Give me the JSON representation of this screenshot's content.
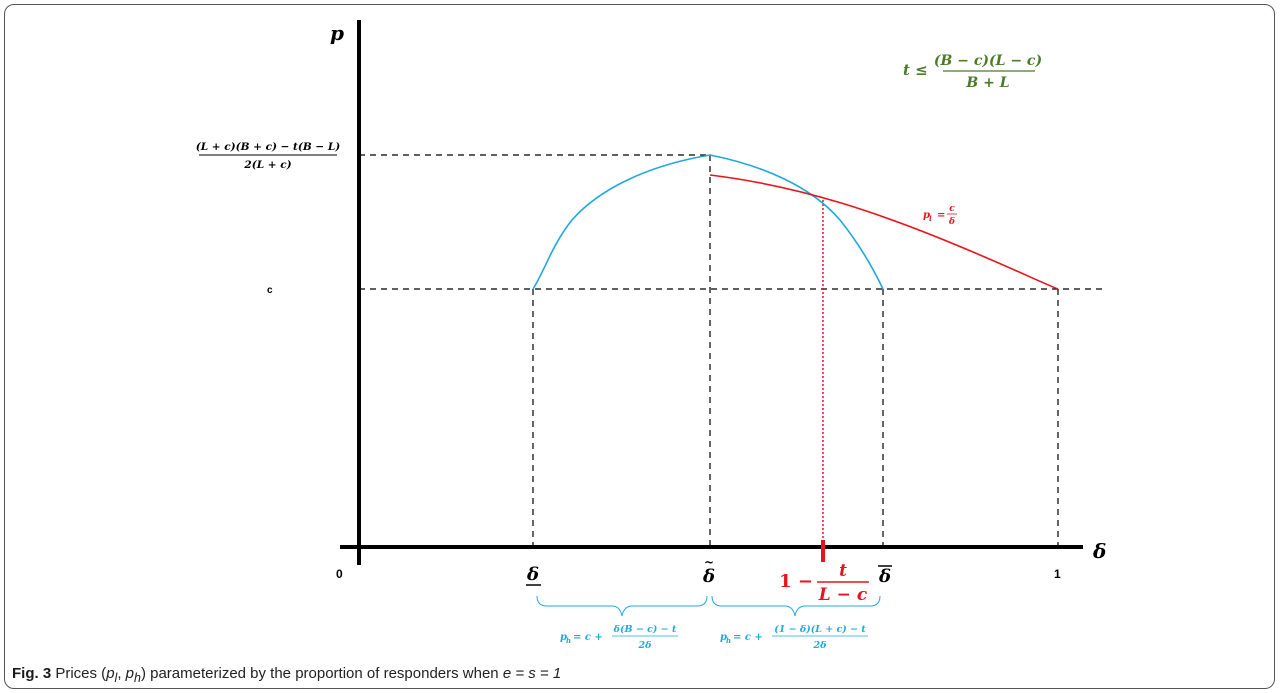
{
  "axes": {
    "y_label": "p",
    "x_label": "δ",
    "origin_label": "0",
    "x_end_label": "1"
  },
  "y_ticks": {
    "peak_numerator": "(L + c)(B + c) − t(B − L)",
    "peak_denominator": "2(L + c)",
    "c_label": "c"
  },
  "x_ticks": {
    "delta_under": "δ",
    "delta_tilde": "δ",
    "delta_bar": "δ",
    "threshold_one": "1 −",
    "threshold_num": "t",
    "threshold_den": "L − c"
  },
  "condition": {
    "lhs": "t ≤",
    "numerator": "(B − c)(L − c)",
    "denominator": "B + L"
  },
  "red_curve_label": {
    "lhs": "p",
    "sub": "l",
    "eq": "=",
    "num": "c",
    "den": "δ"
  },
  "brace_left_formula": {
    "lhs": "p",
    "sub": "h",
    "eq": "= c +",
    "num": "δ(B − c) − t",
    "den": "2δ"
  },
  "brace_right_formula": {
    "lhs": "p",
    "sub": "h",
    "eq": "= c +",
    "num": "(1 − δ)(L + c) − t",
    "den": "2δ"
  },
  "caption": {
    "label": "Fig. 3",
    "text_1": "Prices (",
    "pl": "p",
    "pl_sub": "l",
    "comma": ", ",
    "ph": "p",
    "ph_sub": "h",
    "text_2": ") parameterized by the proportion of responders when ",
    "eq": "e = s = 1"
  },
  "colors": {
    "axis": "#000000",
    "blue_curve": "#1ea8e0",
    "red_curve": "#e8141b",
    "condition_green": "#4a7a2a",
    "brace_blue": "#2aa7dc"
  }
}
